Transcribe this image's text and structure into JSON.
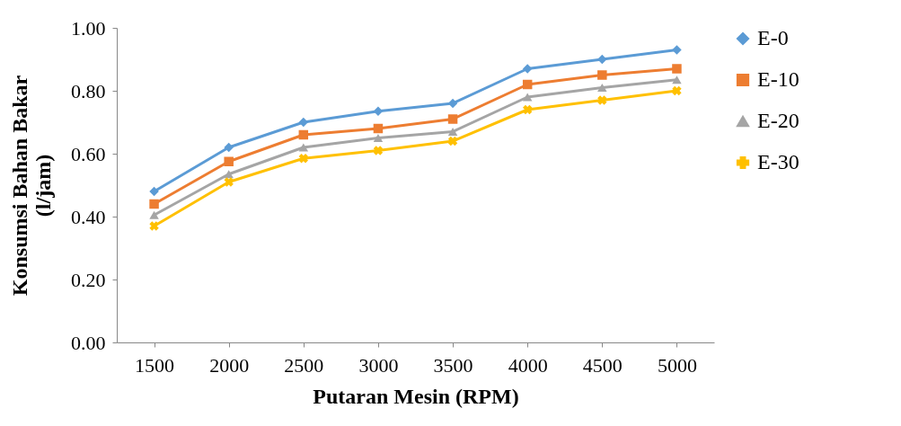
{
  "chart_data": {
    "type": "line",
    "xlabel": "Putaran Mesin (RPM)",
    "ylabel": "Konsumsi Bahan Bakar (l/jam)",
    "categories": [
      "1500",
      "2000",
      "2500",
      "3000",
      "3500",
      "4000",
      "4500",
      "5000"
    ],
    "ylim": [
      0,
      1
    ],
    "yticks": [
      {
        "value": 0,
        "label": "0.00"
      },
      {
        "value": 0.2,
        "label": "0.20"
      },
      {
        "value": 0.4,
        "label": "0.40"
      },
      {
        "value": 0.6,
        "label": "0.60"
      },
      {
        "value": 0.8,
        "label": "0.80"
      },
      {
        "value": 1,
        "label": "1.00"
      }
    ],
    "grid": false,
    "legend": "right",
    "line_style": "solid",
    "series": [
      {
        "name": "E-0",
        "color": "#5b9bd5",
        "marker": "diamond",
        "values": [
          0.48,
          0.62,
          0.7,
          0.735,
          0.76,
          0.87,
          0.9,
          0.93
        ]
      },
      {
        "name": "E-10",
        "color": "#ed7d31",
        "marker": "square",
        "values": [
          0.44,
          0.575,
          0.66,
          0.68,
          0.71,
          0.82,
          0.85,
          0.87
        ]
      },
      {
        "name": "E-20",
        "color": "#a5a5a5",
        "marker": "triangle",
        "values": [
          0.405,
          0.535,
          0.62,
          0.65,
          0.67,
          0.78,
          0.81,
          0.835
        ]
      },
      {
        "name": "E-30",
        "color": "#ffc000",
        "marker": "cross",
        "values": [
          0.37,
          0.51,
          0.585,
          0.61,
          0.64,
          0.74,
          0.77,
          0.8
        ]
      }
    ]
  }
}
